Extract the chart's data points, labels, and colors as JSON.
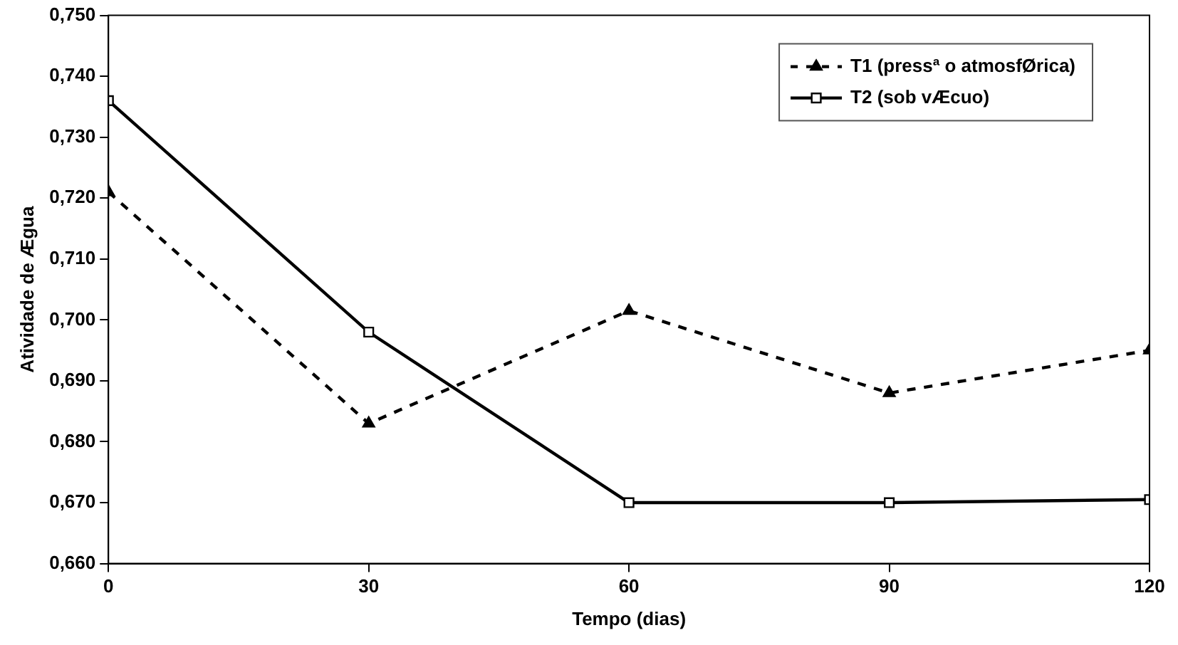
{
  "chart_data": {
    "type": "line",
    "xlabel": "Tempo (dias)",
    "ylabel": "Atividade de Ægua",
    "x": [
      0,
      30,
      60,
      90,
      120
    ],
    "series": [
      {
        "name": "T1 (pressª o atmosfØrica)",
        "color": "#000000",
        "marker": "triangle",
        "line_style": "dashed",
        "values": [
          0.721,
          0.683,
          0.7015,
          0.688,
          0.695
        ]
      },
      {
        "name": "T2 (sob vÆcuo)",
        "color": "#000000",
        "marker": "square",
        "line_style": "solid",
        "values": [
          0.736,
          0.698,
          0.67,
          0.67,
          0.6705
        ]
      }
    ],
    "xlim": [
      0,
      120
    ],
    "xticks": [
      0,
      30,
      60,
      90,
      120
    ],
    "ylim": [
      0.66,
      0.75
    ],
    "yticks": [
      {
        "value": 0.66,
        "label": "0,660"
      },
      {
        "value": 0.67,
        "label": "0,670"
      },
      {
        "value": 0.68,
        "label": "0,680"
      },
      {
        "value": 0.69,
        "label": "0,690"
      },
      {
        "value": 0.7,
        "label": "0,700"
      },
      {
        "value": 0.71,
        "label": "0,710"
      },
      {
        "value": 0.72,
        "label": "0,720"
      },
      {
        "value": 0.73,
        "label": "0,730"
      },
      {
        "value": 0.74,
        "label": "0,740"
      },
      {
        "value": 0.75,
        "label": "0,750"
      }
    ],
    "grid": false,
    "legend": "top right"
  }
}
